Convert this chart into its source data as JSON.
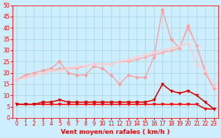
{
  "x": [
    0,
    1,
    2,
    3,
    4,
    5,
    6,
    7,
    8,
    9,
    10,
    11,
    12,
    13,
    14,
    15,
    16,
    17,
    18,
    19,
    20,
    21,
    22,
    23
  ],
  "series": [
    {
      "name": "line1_dark",
      "color": "#ff0000",
      "linewidth": 1.2,
      "marker": "v",
      "markersize": 3,
      "y": [
        6,
        6,
        6,
        6,
        6,
        6,
        6,
        6,
        6,
        6,
        6,
        6,
        6,
        6,
        6,
        6,
        6,
        6,
        6,
        6,
        6,
        6,
        4,
        4
      ]
    },
    {
      "name": "line2_dark",
      "color": "#dd0000",
      "linewidth": 1.2,
      "marker": "v",
      "markersize": 3,
      "y": [
        6,
        6,
        6,
        7,
        7,
        8,
        7,
        7,
        7,
        7,
        7,
        7,
        7,
        7,
        7,
        7,
        8,
        15,
        12,
        11,
        12,
        10,
        7,
        4
      ]
    },
    {
      "name": "line3_light",
      "color": "#ff9999",
      "linewidth": 1.0,
      "marker": "D",
      "markersize": 2.5,
      "y": [
        17,
        19,
        20,
        21,
        22,
        25,
        20,
        19,
        19,
        23,
        22,
        19,
        15,
        19,
        18,
        18,
        27,
        48,
        35,
        31,
        41,
        32,
        20,
        13
      ]
    },
    {
      "name": "line4_light",
      "color": "#ffaaaa",
      "linewidth": 1.0,
      "marker": "D",
      "markersize": 2.5,
      "y": [
        17,
        18,
        19,
        20,
        21,
        22,
        22,
        22,
        23,
        24,
        24,
        24,
        25,
        25,
        26,
        27,
        28,
        29,
        30,
        31,
        40,
        32,
        21,
        14
      ]
    },
    {
      "name": "line5_light",
      "color": "#ffcccc",
      "linewidth": 1.0,
      "marker": "D",
      "markersize": 2.5,
      "y": [
        17,
        18,
        19,
        20,
        21,
        21,
        22,
        23,
        23,
        24,
        24,
        24,
        25,
        26,
        27,
        28,
        29,
        30,
        31,
        32,
        33,
        24,
        21,
        14
      ]
    }
  ],
  "xlabel": "Vent moyen/en rafales ( km/h )",
  "ylim": [
    0,
    50
  ],
  "xlim": [
    -0.5,
    23.5
  ],
  "yticks": [
    0,
    5,
    10,
    15,
    20,
    25,
    30,
    35,
    40,
    45,
    50
  ],
  "xticks": [
    0,
    1,
    2,
    3,
    4,
    5,
    6,
    7,
    8,
    9,
    10,
    11,
    12,
    13,
    14,
    15,
    16,
    17,
    18,
    19,
    20,
    21,
    22,
    23
  ],
  "bg_color": "#cceeff",
  "grid_color": "#99cccc",
  "tick_color": "#ff0000",
  "label_color": "#ff0000"
}
